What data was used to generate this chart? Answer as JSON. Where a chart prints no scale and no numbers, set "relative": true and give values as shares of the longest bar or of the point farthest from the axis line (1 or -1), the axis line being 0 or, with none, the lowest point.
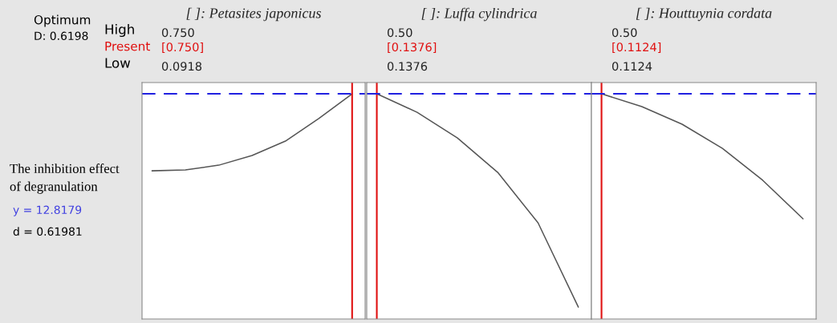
{
  "chart_data": [
    {
      "type": "other",
      "annotations": [
        "Optimum",
        "D: 0.6198",
        "High",
        "Present",
        "Low",
        "The inhibition effect\nof degranulation",
        "y = 12.8179",
        "d = 0.61981"
      ]
    },
    {
      "type": "line",
      "relative": true,
      "title": "[ ]: Petasites japonicus",
      "annotations": [
        "0.750",
        "[0.750]",
        "0.0918"
      ],
      "categories": [
        null,
        null,
        null,
        null,
        null,
        null,
        null
      ],
      "series": [
        {
          "color": "#555555",
          "values": [
            0.658,
            0.662,
            0.683,
            0.726,
            0.79,
            0.89,
            1
          ]
        }
      ],
      "ref_lines": [
        {
          "axis": "y",
          "value": 1,
          "color": "#2020e0",
          "line_style": "dashed"
        }
      ]
    },
    {
      "type": "line",
      "relative": true,
      "title": "[ ]: Luffa cylindrica",
      "annotations": [
        "0.50",
        "[0.1376]",
        "0.1376"
      ],
      "categories": [
        null,
        null,
        null,
        null,
        null,
        null
      ],
      "series": [
        {
          "color": "#555555",
          "values": [
            1,
            0.918,
            0.804,
            0.651,
            0.427,
            0.053
          ]
        }
      ],
      "ref_lines": [
        {
          "axis": "y",
          "value": 1,
          "color": "#2020e0",
          "line_style": "dashed"
        }
      ]
    },
    {
      "type": "line",
      "relative": true,
      "title": "[ ]: Houttuynia cordata",
      "annotations": [
        "0.50",
        "[0.1124]",
        "0.1124"
      ],
      "categories": [
        null,
        null,
        null,
        null,
        null,
        null
      ],
      "series": [
        {
          "color": "#555555",
          "values": [
            1,
            0.943,
            0.865,
            0.758,
            0.616,
            0.445
          ]
        }
      ],
      "ref_lines": [
        {
          "axis": "y",
          "value": 1,
          "color": "#2020e0",
          "line_style": "dashed"
        }
      ]
    }
  ]
}
